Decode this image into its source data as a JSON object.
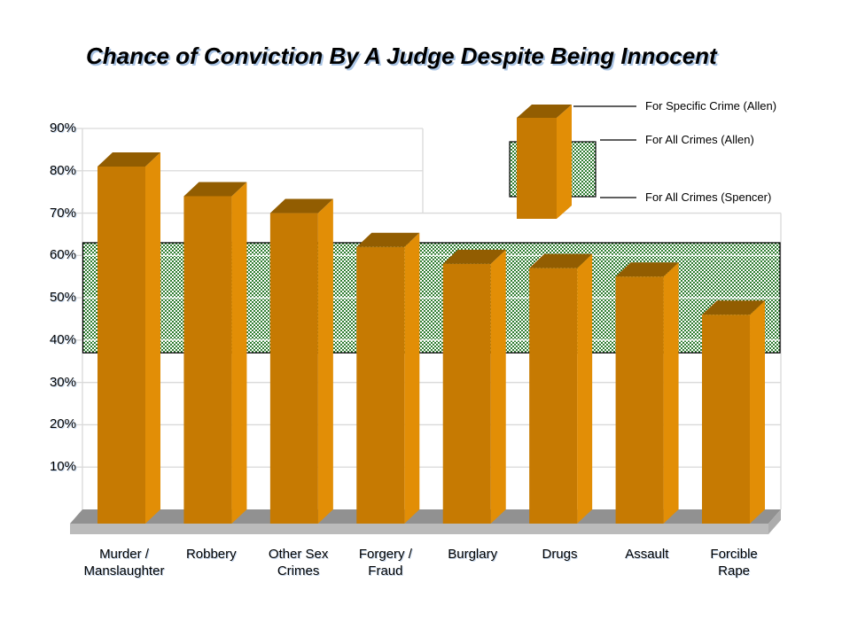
{
  "title": "Chance of Conviction By A Judge Despite Being Innocent",
  "legend": {
    "items": [
      {
        "label": "For Specific Crime (Allen)"
      },
      {
        "label": "For All Crimes (Allen)"
      },
      {
        "label": "For All Crimes (Spencer)"
      }
    ]
  },
  "chart_data": {
    "type": "bar",
    "title": "Chance of Conviction By A Judge Despite Being Innocent",
    "categories": [
      "Murder / Manslaughter",
      "Robbery",
      "Other Sex Crimes",
      "Forgery / Fraud",
      "Burglary",
      "Drugs",
      "Assault",
      "Forcible Rape"
    ],
    "categories_display": [
      [
        "Murder /",
        "Manslaughter"
      ],
      [
        "Robbery"
      ],
      [
        "Other Sex",
        "Crimes"
      ],
      [
        "Forgery /",
        "Fraud"
      ],
      [
        "Burglary"
      ],
      [
        "Drugs"
      ],
      [
        "Assault"
      ],
      [
        "Forcible",
        "Rape"
      ]
    ],
    "series": [
      {
        "name": "For Specific Crime (Allen)",
        "values": [
          81,
          74,
          70,
          62,
          58,
          57,
          55,
          46
        ]
      }
    ],
    "band": {
      "top_label": "For All Crimes (Allen)",
      "bottom_label": "For All Crimes (Spencer)",
      "from": 37,
      "to": 63
    },
    "ylim": [
      0,
      90
    ],
    "ytick_labels": [
      "90%",
      "80%",
      "70%",
      "60%",
      "50%",
      "40%",
      "30%",
      "20%",
      "10%"
    ],
    "ytick_values": [
      90,
      80,
      70,
      60,
      50,
      40,
      30,
      20,
      10
    ],
    "grid": true,
    "legend_position": "top-right",
    "style": "3d-bars"
  },
  "colors": {
    "bar_front": "#C67A02",
    "bar_side": "#E28E06",
    "bar_top": "#925D01",
    "band_green": "#2F7D31",
    "band_border": "#000000",
    "floor_top": "#919191",
    "floor_front": "#BBBBBB",
    "floor_end": "#ACACAC",
    "gridline": "#D9D9D9",
    "grid_on_band": "#FFFFFF",
    "leader_line": "#000000",
    "text": "#000000"
  }
}
